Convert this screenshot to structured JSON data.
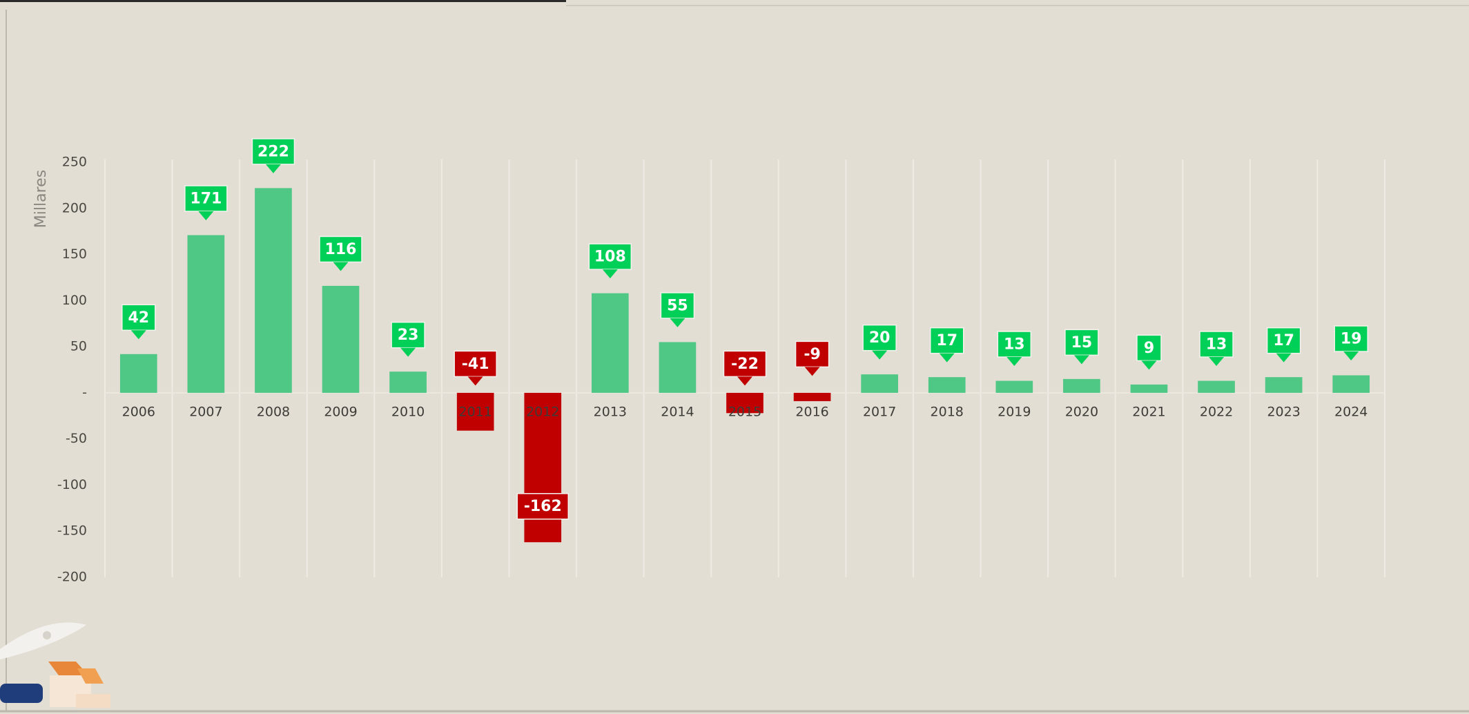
{
  "chart_data": {
    "type": "bar",
    "y_label": "Millares",
    "categories": [
      "2006",
      "2007",
      "2008",
      "2009",
      "2010",
      "2011",
      "2012",
      "2013",
      "2014",
      "2015",
      "2016",
      "2017",
      "2018",
      "2019",
      "2020",
      "2021",
      "2022",
      "2023",
      "2024"
    ],
    "values": [
      42,
      171,
      222,
      116,
      23,
      -41,
      -162,
      108,
      55,
      -22,
      -9,
      20,
      17,
      13,
      15,
      9,
      13,
      17,
      19
    ],
    "color": "#4fc785",
    "negative_color": "#c00000",
    "label_color": "#00d057",
    "negative_label_color": "#c00000",
    "ylim": [
      -200,
      250
    ],
    "yticks": [
      250,
      200,
      150,
      100,
      50,
      {
        "value": 0,
        "label": "-"
      },
      -50,
      -100,
      -150,
      -200
    ]
  }
}
